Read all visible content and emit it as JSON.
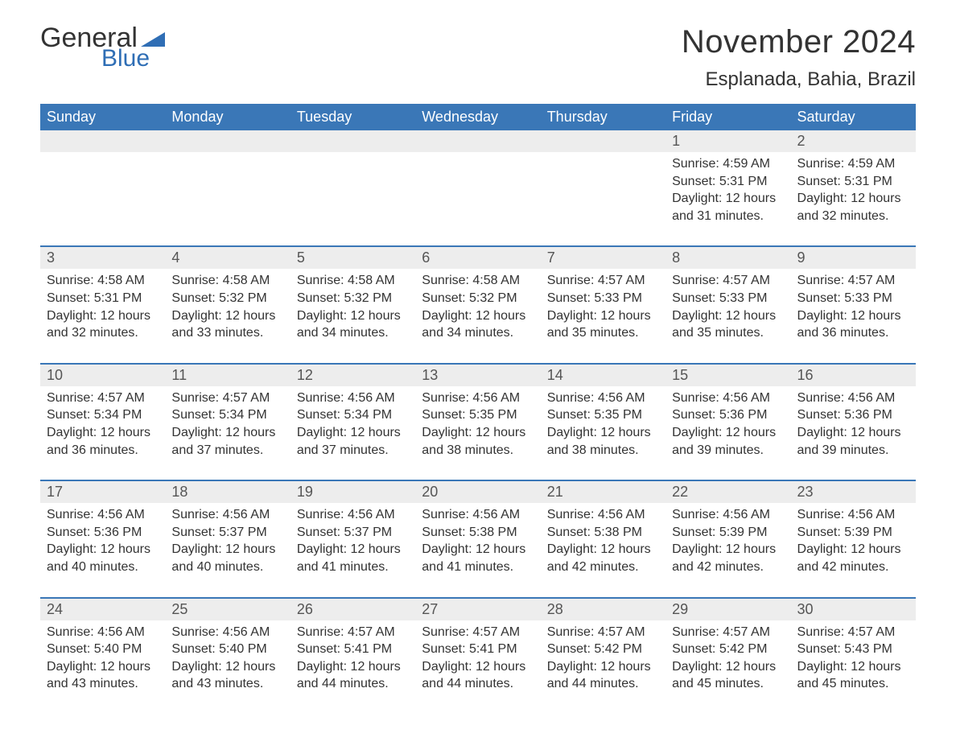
{
  "brand": {
    "word1": "General",
    "word2": "Blue",
    "accent_color": "#2f6eb5"
  },
  "title": "November 2024",
  "location": "Esplanada, Bahia, Brazil",
  "colors": {
    "header_bg": "#3a77b7",
    "header_text": "#ffffff",
    "daynum_bg": "#ededed",
    "row_border": "#3a77b7",
    "body_text": "#333333",
    "page_bg": "#ffffff"
  },
  "day_headers": [
    "Sunday",
    "Monday",
    "Tuesday",
    "Wednesday",
    "Thursday",
    "Friday",
    "Saturday"
  ],
  "weeks": [
    [
      null,
      null,
      null,
      null,
      null,
      {
        "n": "1",
        "sunrise": "Sunrise: 4:59 AM",
        "sunset": "Sunset: 5:31 PM",
        "daylight": "Daylight: 12 hours and 31 minutes."
      },
      {
        "n": "2",
        "sunrise": "Sunrise: 4:59 AM",
        "sunset": "Sunset: 5:31 PM",
        "daylight": "Daylight: 12 hours and 32 minutes."
      }
    ],
    [
      {
        "n": "3",
        "sunrise": "Sunrise: 4:58 AM",
        "sunset": "Sunset: 5:31 PM",
        "daylight": "Daylight: 12 hours and 32 minutes."
      },
      {
        "n": "4",
        "sunrise": "Sunrise: 4:58 AM",
        "sunset": "Sunset: 5:32 PM",
        "daylight": "Daylight: 12 hours and 33 minutes."
      },
      {
        "n": "5",
        "sunrise": "Sunrise: 4:58 AM",
        "sunset": "Sunset: 5:32 PM",
        "daylight": "Daylight: 12 hours and 34 minutes."
      },
      {
        "n": "6",
        "sunrise": "Sunrise: 4:58 AM",
        "sunset": "Sunset: 5:32 PM",
        "daylight": "Daylight: 12 hours and 34 minutes."
      },
      {
        "n": "7",
        "sunrise": "Sunrise: 4:57 AM",
        "sunset": "Sunset: 5:33 PM",
        "daylight": "Daylight: 12 hours and 35 minutes."
      },
      {
        "n": "8",
        "sunrise": "Sunrise: 4:57 AM",
        "sunset": "Sunset: 5:33 PM",
        "daylight": "Daylight: 12 hours and 35 minutes."
      },
      {
        "n": "9",
        "sunrise": "Sunrise: 4:57 AM",
        "sunset": "Sunset: 5:33 PM",
        "daylight": "Daylight: 12 hours and 36 minutes."
      }
    ],
    [
      {
        "n": "10",
        "sunrise": "Sunrise: 4:57 AM",
        "sunset": "Sunset: 5:34 PM",
        "daylight": "Daylight: 12 hours and 36 minutes."
      },
      {
        "n": "11",
        "sunrise": "Sunrise: 4:57 AM",
        "sunset": "Sunset: 5:34 PM",
        "daylight": "Daylight: 12 hours and 37 minutes."
      },
      {
        "n": "12",
        "sunrise": "Sunrise: 4:56 AM",
        "sunset": "Sunset: 5:34 PM",
        "daylight": "Daylight: 12 hours and 37 minutes."
      },
      {
        "n": "13",
        "sunrise": "Sunrise: 4:56 AM",
        "sunset": "Sunset: 5:35 PM",
        "daylight": "Daylight: 12 hours and 38 minutes."
      },
      {
        "n": "14",
        "sunrise": "Sunrise: 4:56 AM",
        "sunset": "Sunset: 5:35 PM",
        "daylight": "Daylight: 12 hours and 38 minutes."
      },
      {
        "n": "15",
        "sunrise": "Sunrise: 4:56 AM",
        "sunset": "Sunset: 5:36 PM",
        "daylight": "Daylight: 12 hours and 39 minutes."
      },
      {
        "n": "16",
        "sunrise": "Sunrise: 4:56 AM",
        "sunset": "Sunset: 5:36 PM",
        "daylight": "Daylight: 12 hours and 39 minutes."
      }
    ],
    [
      {
        "n": "17",
        "sunrise": "Sunrise: 4:56 AM",
        "sunset": "Sunset: 5:36 PM",
        "daylight": "Daylight: 12 hours and 40 minutes."
      },
      {
        "n": "18",
        "sunrise": "Sunrise: 4:56 AM",
        "sunset": "Sunset: 5:37 PM",
        "daylight": "Daylight: 12 hours and 40 minutes."
      },
      {
        "n": "19",
        "sunrise": "Sunrise: 4:56 AM",
        "sunset": "Sunset: 5:37 PM",
        "daylight": "Daylight: 12 hours and 41 minutes."
      },
      {
        "n": "20",
        "sunrise": "Sunrise: 4:56 AM",
        "sunset": "Sunset: 5:38 PM",
        "daylight": "Daylight: 12 hours and 41 minutes."
      },
      {
        "n": "21",
        "sunrise": "Sunrise: 4:56 AM",
        "sunset": "Sunset: 5:38 PM",
        "daylight": "Daylight: 12 hours and 42 minutes."
      },
      {
        "n": "22",
        "sunrise": "Sunrise: 4:56 AM",
        "sunset": "Sunset: 5:39 PM",
        "daylight": "Daylight: 12 hours and 42 minutes."
      },
      {
        "n": "23",
        "sunrise": "Sunrise: 4:56 AM",
        "sunset": "Sunset: 5:39 PM",
        "daylight": "Daylight: 12 hours and 42 minutes."
      }
    ],
    [
      {
        "n": "24",
        "sunrise": "Sunrise: 4:56 AM",
        "sunset": "Sunset: 5:40 PM",
        "daylight": "Daylight: 12 hours and 43 minutes."
      },
      {
        "n": "25",
        "sunrise": "Sunrise: 4:56 AM",
        "sunset": "Sunset: 5:40 PM",
        "daylight": "Daylight: 12 hours and 43 minutes."
      },
      {
        "n": "26",
        "sunrise": "Sunrise: 4:57 AM",
        "sunset": "Sunset: 5:41 PM",
        "daylight": "Daylight: 12 hours and 44 minutes."
      },
      {
        "n": "27",
        "sunrise": "Sunrise: 4:57 AM",
        "sunset": "Sunset: 5:41 PM",
        "daylight": "Daylight: 12 hours and 44 minutes."
      },
      {
        "n": "28",
        "sunrise": "Sunrise: 4:57 AM",
        "sunset": "Sunset: 5:42 PM",
        "daylight": "Daylight: 12 hours and 44 minutes."
      },
      {
        "n": "29",
        "sunrise": "Sunrise: 4:57 AM",
        "sunset": "Sunset: 5:42 PM",
        "daylight": "Daylight: 12 hours and 45 minutes."
      },
      {
        "n": "30",
        "sunrise": "Sunrise: 4:57 AM",
        "sunset": "Sunset: 5:43 PM",
        "daylight": "Daylight: 12 hours and 45 minutes."
      }
    ]
  ]
}
